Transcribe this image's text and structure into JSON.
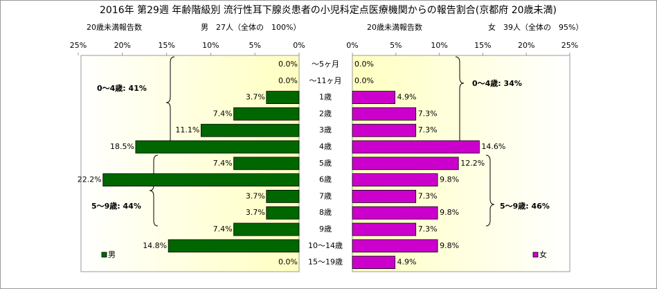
{
  "chart_data": {
    "type": "bar",
    "title": "2016年 第29週 年齢階級別 流行性耳下腺炎患者の小児科定点医療機関からの報告割合(京都府 20歳未満)",
    "subtitles": [
      "20歳未満報告数",
      "男　27人（全体の　100%）",
      "20歳未満報告数",
      "女　39人（全体の　95%）"
    ],
    "categories": [
      "～5ヶ月",
      "～11ヶ月",
      "1歳",
      "2歳",
      "3歳",
      "4歳",
      "5歳",
      "6歳",
      "7歳",
      "8歳",
      "9歳",
      "10～14歳",
      "15～19歳"
    ],
    "series": [
      {
        "name": "男",
        "color": "#006600",
        "values": [
          0.0,
          0.0,
          3.7,
          7.4,
          11.1,
          18.5,
          7.4,
          22.2,
          3.7,
          3.7,
          7.4,
          14.8,
          0.0
        ],
        "value_labels": [
          "0.0%",
          "0.0%",
          "3.7%",
          "7.4%",
          "11.1%",
          "18.5%",
          "7.4%",
          "22.2%",
          "3.7%",
          "3.7%",
          "7.4%",
          "14.8%",
          "0.0%"
        ]
      },
      {
        "name": "女",
        "color": "#cc00cc",
        "values": [
          0.0,
          0.0,
          4.9,
          7.3,
          7.3,
          14.6,
          12.2,
          9.8,
          7.3,
          9.8,
          7.3,
          9.8,
          4.9
        ],
        "value_labels": [
          "0.0%",
          "0.0%",
          "4.9%",
          "7.3%",
          "7.3%",
          "14.6%",
          "12.2%",
          "9.8%",
          "7.3%",
          "9.8%",
          "7.3%",
          "9.8%",
          "4.9%"
        ]
      }
    ],
    "xlim": [
      0,
      25
    ],
    "xticks": [
      {
        "value": 0,
        "label": "0%"
      },
      {
        "value": 5,
        "label": "5%"
      },
      {
        "value": 10,
        "label": "10%"
      },
      {
        "value": 15,
        "label": "15%"
      },
      {
        "value": 20,
        "label": "20%"
      },
      {
        "value": 25,
        "label": "25%"
      }
    ],
    "annotations": [
      "0～4歳: 41%",
      "5～9歳: 44%",
      "0～4歳: 34%",
      "5～9歳: 46%"
    ]
  }
}
